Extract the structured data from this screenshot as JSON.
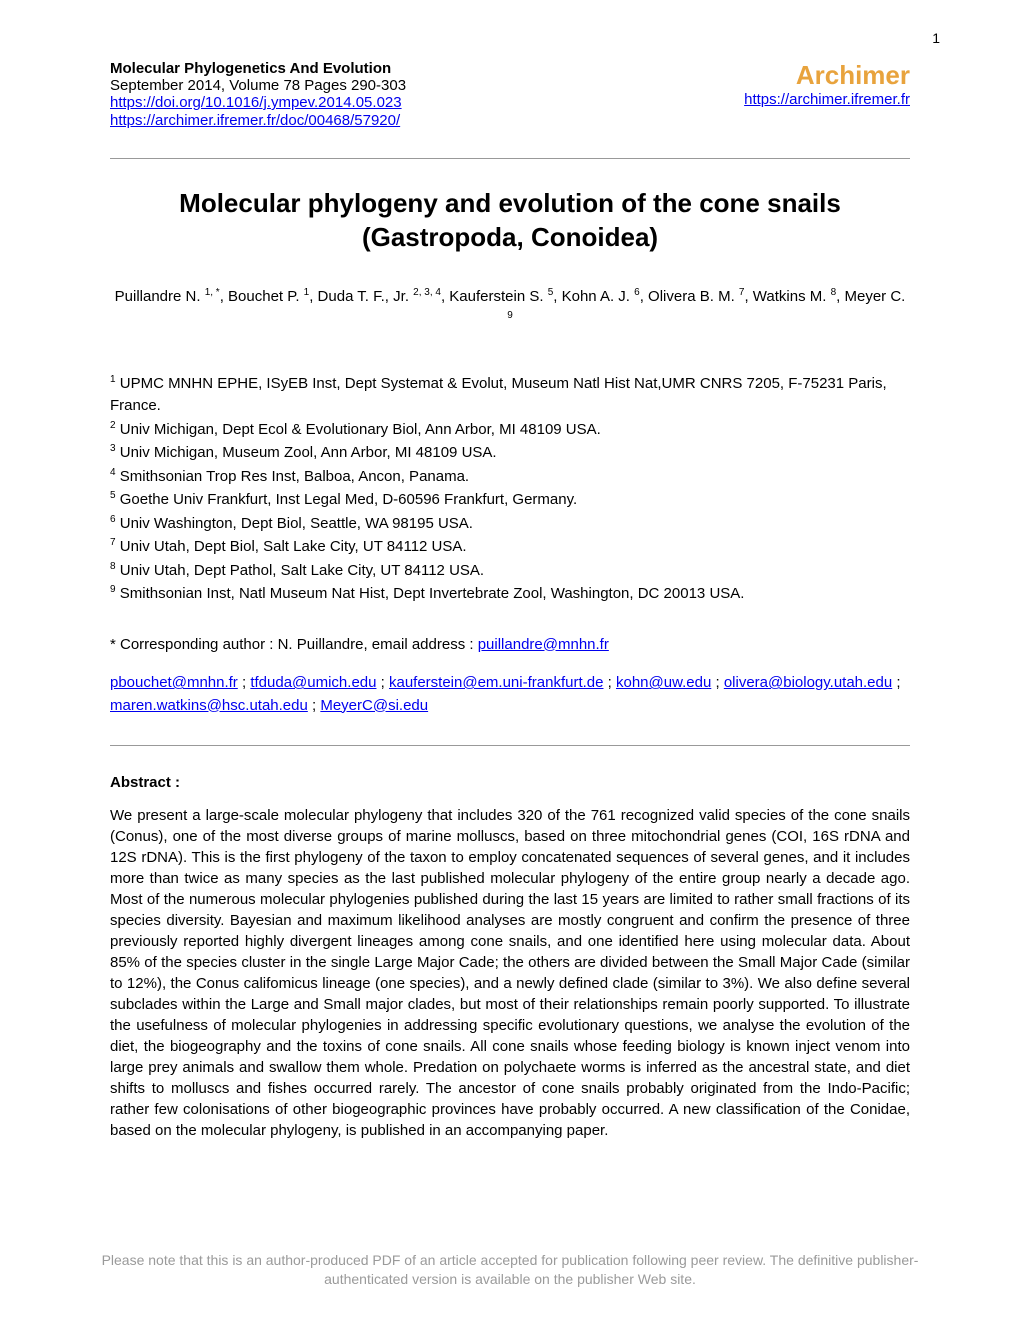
{
  "page_number": "1",
  "header": {
    "journal_name": "Molecular Phylogenetics And Evolution",
    "issue": "September 2014, Volume 78 Pages 290-303",
    "doi_link": "https://doi.org/10.1016/j.ympev.2014.05.023",
    "archimer_doc_link": "https://archimer.ifremer.fr/doc/00468/57920/",
    "archimer_label": "Archimer",
    "archimer_link": "https://archimer.ifremer.fr"
  },
  "title_line1": "Molecular phylogeny and evolution of the cone snails",
  "title_line2": "(Gastropoda, Conoidea)",
  "authors": {
    "a1": "Puillandre N. ",
    "s1": "1, *",
    "a2": ", Bouchet P. ",
    "s2": "1",
    "a3": ", Duda T. F., Jr. ",
    "s3": "2, 3, 4",
    "a4": ", Kauferstein S. ",
    "s4": "5",
    "a5": ", Kohn A. J. ",
    "s5": "6",
    "a6": ", Olivera B. M. ",
    "s6": "7",
    "a7": ", Watkins M. ",
    "s7": "8",
    "a8": ", Meyer C. ",
    "s8": "9"
  },
  "affiliations": {
    "l1": " UPMC MNHN EPHE, ISyEB Inst, Dept Systemat & Evolut, Museum Natl Hist Nat,UMR CNRS 7205, F-75231 Paris, France.",
    "l2": " Univ Michigan, Dept Ecol & Evolutionary Biol, Ann Arbor, MI 48109 USA.",
    "l3": " Univ Michigan, Museum Zool, Ann Arbor, MI 48109 USA.",
    "l4": " Smithsonian Trop Res Inst, Balboa, Ancon, Panama.",
    "l5": " Goethe Univ Frankfurt, Inst Legal Med, D-60596 Frankfurt, Germany.",
    "l6": " Univ Washington, Dept Biol, Seattle, WA 98195 USA.",
    "l7": " Univ Utah, Dept Biol, Salt Lake City, UT 84112 USA.",
    "l8": " Univ Utah, Dept Pathol, Salt Lake City, UT 84112 USA.",
    "l9": " Smithsonian Inst, Natl Museum Nat Hist, Dept Invertebrate Zool, Washington, DC 20013 USA."
  },
  "corresponding": {
    "prefix": "* Corresponding author :  N. Puillandre, email address :  ",
    "email": "puillandre@mnhn.fr"
  },
  "emails": {
    "e1": "pbouchet@mnhn.fr",
    "e2": "tfduda@umich.edu",
    "e3": "kauferstein@em.uni-frankfurt.de",
    "e4": "kohn@uw.edu",
    "e5": "olivera@biology.utah.edu",
    "e6": "maren.watkins@hsc.utah.edu",
    "e7": "MeyerC@si.edu",
    "sep": " ; "
  },
  "abstract": {
    "heading": "Abstract :",
    "body": "We present a large-scale molecular phylogeny that includes 320 of the 761 recognized valid species of the cone snails (Conus), one of the most diverse groups of marine molluscs, based on three mitochondrial genes (COI, 16S rDNA and 12S rDNA). This is the first phylogeny of the taxon to employ concatenated sequences of several genes, and it includes more than twice as many species as the last published molecular phylogeny of the entire group nearly a decade ago. Most of the numerous molecular phylogenies published during the last 15 years are limited to rather small fractions of its species diversity. Bayesian and maximum likelihood analyses are mostly congruent and confirm the presence of three previously reported highly divergent lineages among cone snails, and one identified here using molecular data. About 85% of the species cluster in the single Large Major Cade; the others are divided between the Small Major Cade (similar to 12%), the Conus califomicus lineage (one species), and a newly defined clade (similar to 3%). We also define several subclades within the Large and Small major clades, but most of their relationships remain poorly supported. To illustrate the usefulness of molecular phylogenies in addressing specific evolutionary questions, we analyse the evolution of the diet, the biogeography and the toxins of cone snails. All cone snails whose feeding biology is known inject venom into large prey animals and swallow them whole. Predation on polychaete worms is inferred as the ancestral state, and diet shifts to molluscs and fishes occurred rarely. The ancestor of cone snails probably originated from the Indo-Pacific; rather few colonisations of other biogeographic provinces have probably occurred. A new classification of the Conidae, based on the molecular phylogeny, is published in an accompanying paper."
  },
  "footer": "Please note that this is an author-produced PDF of an article accepted for publication following peer review. The definitive publisher-authenticated version is available on the publisher Web site.",
  "colors": {
    "link": "#0000ee",
    "archimer": "#e8a33d",
    "footer": "#9a9a9a",
    "text": "#000000",
    "background": "#ffffff",
    "divider": "#999999"
  },
  "typography": {
    "body_font": "Arial",
    "title_size_pt": 20,
    "body_size_pt": 11,
    "archimer_size_pt": 20
  }
}
